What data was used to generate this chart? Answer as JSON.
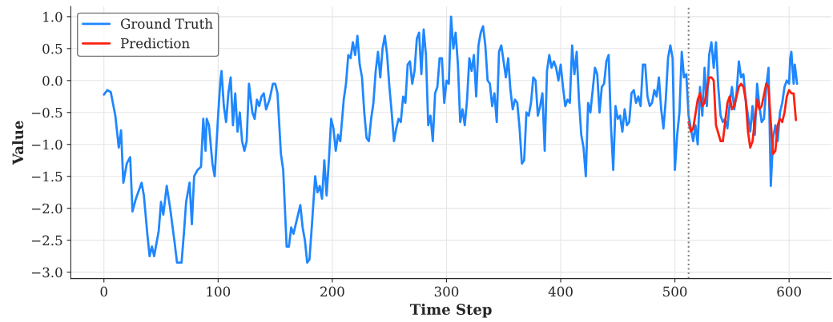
{
  "chart_data": {
    "type": "line",
    "xlabel": "Time Step",
    "ylabel": "Value",
    "xlim": [
      -29,
      637
    ],
    "ylim": [
      -3.1,
      1.16
    ],
    "xticks": [
      0,
      100,
      200,
      300,
      400,
      500,
      600
    ],
    "yticks": [
      {
        "value": -3,
        "label": "−3.0"
      },
      {
        "value": -2.5,
        "label": "−2.5"
      },
      {
        "value": -2,
        "label": "−2.0"
      },
      {
        "value": -1.5,
        "label": "−1.5"
      },
      {
        "value": -1,
        "label": "−1.0"
      },
      {
        "value": -0.5,
        "label": "−0.5"
      },
      {
        "value": 0,
        "label": "0.0"
      },
      {
        "value": 0.5,
        "label": "0.5"
      },
      {
        "value": 1,
        "label": "1.0"
      }
    ],
    "grid": true,
    "legend": "top left",
    "ref_lines": [
      {
        "axis": "x",
        "value": 512,
        "color": "#808080",
        "line_style": "dotted"
      }
    ],
    "series": [
      {
        "name": "Ground Truth",
        "color": "#1f87ff",
        "x": [
          0,
          3,
          6,
          10,
          13,
          15,
          17,
          20,
          23,
          25,
          28,
          30,
          33,
          35,
          38,
          40,
          42,
          44,
          48,
          50,
          52,
          55,
          58,
          62,
          64,
          68,
          70,
          72,
          75,
          77,
          79,
          82,
          85,
          87,
          89,
          90,
          92,
          95,
          97,
          100,
          102,
          103,
          105,
          107,
          109,
          111,
          113,
          115,
          117,
          119,
          121,
          123,
          125,
          127,
          130,
          132,
          134,
          136,
          138,
          140,
          142,
          145,
          148,
          150,
          152,
          155,
          157,
          160,
          162,
          164,
          166,
          170,
          172,
          174,
          176,
          178,
          180,
          182,
          185,
          187,
          189,
          191,
          193,
          195,
          197,
          199,
          201,
          203,
          205,
          207,
          210,
          212,
          214,
          216,
          218,
          220,
          222,
          224,
          226,
          228,
          230,
          232,
          234,
          236,
          238,
          240,
          242,
          244,
          246,
          248,
          250,
          252,
          254,
          256,
          258,
          260,
          262,
          264,
          266,
          268,
          270,
          272,
          274,
          276,
          278,
          280,
          282,
          284,
          286,
          288,
          290,
          292,
          294,
          296,
          298,
          300,
          302,
          304,
          306,
          308,
          310,
          312,
          314,
          316,
          318,
          320,
          322,
          324,
          326,
          328,
          330,
          332,
          334,
          336,
          338,
          340,
          342,
          344,
          346,
          348,
          350,
          352,
          354,
          356,
          358,
          360,
          362,
          364,
          366,
          368,
          370,
          372,
          374,
          376,
          378,
          380,
          382,
          384,
          386,
          388,
          390,
          392,
          394,
          396,
          398,
          400,
          402,
          404,
          406,
          408,
          410,
          412,
          414,
          416,
          418,
          420,
          422,
          424,
          426,
          428,
          430,
          432,
          434,
          436,
          438,
          440,
          442,
          444,
          446,
          448,
          450,
          452,
          454,
          456,
          458,
          460,
          462,
          464,
          466,
          468,
          470,
          472,
          474,
          476,
          478,
          480,
          482,
          484,
          486,
          488,
          490,
          492,
          494,
          496,
          498,
          500,
          502,
          504,
          506,
          508,
          510,
          512,
          514,
          516,
          518,
          520,
          522,
          524,
          526,
          528,
          530,
          532,
          534,
          536,
          538,
          540,
          542,
          544,
          546,
          548,
          550,
          552,
          554,
          556,
          558,
          560,
          562,
          564,
          566,
          568,
          570,
          572,
          574,
          576,
          578,
          580,
          582,
          584,
          586,
          588,
          590,
          592,
          594,
          596,
          598,
          600,
          601,
          602,
          604,
          605,
          607
        ],
        "values": [
          -0.22,
          -0.15,
          -0.18,
          -0.55,
          -1.05,
          -0.78,
          -1.6,
          -1.3,
          -1.2,
          -2.05,
          -1.85,
          -1.75,
          -1.6,
          -1.8,
          -2.4,
          -2.75,
          -2.6,
          -2.75,
          -2.35,
          -1.9,
          -2.1,
          -1.65,
          -2.0,
          -2.55,
          -2.85,
          -2.85,
          -2.4,
          -1.9,
          -1.6,
          -2.25,
          -1.5,
          -1.4,
          -1.35,
          -0.6,
          -1.1,
          -0.6,
          -0.7,
          -1.3,
          -1.5,
          -0.55,
          0.0,
          0.15,
          -0.4,
          -0.65,
          -0.2,
          0.05,
          -0.7,
          -0.2,
          -0.8,
          -0.5,
          -0.95,
          -1.1,
          -0.95,
          -0.05,
          -0.5,
          -0.6,
          -0.3,
          -0.4,
          -0.25,
          -0.2,
          -0.45,
          -0.3,
          -0.05,
          -0.05,
          -0.2,
          -1.15,
          -1.4,
          -2.6,
          -2.6,
          -2.3,
          -2.4,
          -2.1,
          -1.95,
          -2.3,
          -2.5,
          -2.85,
          -2.8,
          -2.3,
          -1.5,
          -1.75,
          -1.65,
          -1.85,
          -1.25,
          -1.8,
          -1.25,
          -0.6,
          -0.75,
          -1.1,
          -0.85,
          -0.95,
          -0.3,
          -0.05,
          0.4,
          0.35,
          0.6,
          0.4,
          0.7,
          0.25,
          0.05,
          -0.5,
          -0.9,
          -0.95,
          -0.6,
          -0.35,
          0.15,
          0.45,
          0.05,
          0.5,
          0.7,
          0.4,
          -0.1,
          -0.5,
          -0.95,
          -0.75,
          -0.6,
          -0.65,
          -0.25,
          -0.35,
          0.25,
          0.3,
          -0.05,
          0.15,
          0.65,
          0.75,
          0.1,
          0.8,
          0.4,
          -0.7,
          -0.55,
          -0.95,
          -0.2,
          -0.1,
          0.35,
          0.35,
          -0.35,
          0.0,
          -0.05,
          1.0,
          0.5,
          0.75,
          0.25,
          -0.65,
          -0.45,
          -0.7,
          -0.3,
          0.35,
          0.15,
          0.4,
          -0.25,
          0.55,
          0.75,
          0.85,
          0.55,
          0.0,
          -0.05,
          -0.4,
          -0.2,
          -0.65,
          0.45,
          0.55,
          0.3,
          0.05,
          0.35,
          -0.15,
          -0.45,
          -0.3,
          -0.35,
          -0.75,
          -1.3,
          -1.25,
          -0.5,
          -0.55,
          -0.35,
          0.05,
          0.0,
          -0.55,
          -0.4,
          -0.2,
          -1.1,
          0.15,
          0.4,
          0.2,
          0.3,
          0.2,
          0.0,
          0.25,
          -0.1,
          -0.4,
          -0.3,
          -0.35,
          0.55,
          0.1,
          0.45,
          -0.3,
          -0.85,
          -1.05,
          -1.5,
          -0.35,
          -0.5,
          -0.15,
          0.2,
          0.1,
          -0.5,
          -0.1,
          -0.05,
          0.3,
          0.4,
          -0.7,
          -1.4,
          -0.4,
          -0.6,
          -0.55,
          -0.8,
          -0.45,
          -0.7,
          -0.65,
          -0.2,
          -0.15,
          -0.35,
          -0.25,
          -0.4,
          0.25,
          0.25,
          -0.25,
          -0.4,
          -0.35,
          -0.15,
          -0.25,
          0.05,
          -0.45,
          -0.75,
          -0.3,
          0.35,
          0.55,
          0.35,
          -1.4,
          -0.85,
          -0.5,
          0.45,
          0.05,
          0.1,
          -0.55,
          -0.75,
          -0.95,
          -0.7,
          -1.0,
          -0.1,
          -0.55,
          0.2,
          -0.4,
          0.4,
          0.6,
          0.2,
          0.6,
          -0.1,
          -0.55,
          -0.65,
          -0.6,
          -0.75,
          -0.35,
          -0.1,
          -0.45,
          -0.2,
          0.3,
          0.05,
          0.1,
          -0.3,
          -0.55,
          -0.8,
          -0.4,
          -0.85,
          -0.05,
          -0.4,
          -0.65,
          -0.6,
          -0.1,
          0.2,
          -1.65,
          -0.9,
          -0.7,
          -0.95,
          -0.5,
          -0.35,
          -0.1,
          0.0,
          -0.05,
          0.35,
          0.45,
          -0.05,
          0.25,
          -0.05
        ]
      },
      {
        "name": "Prediction",
        "color": "#ff2010",
        "x": [
          512,
          514,
          516,
          520,
          522,
          524,
          526,
          530,
          532,
          534,
          536,
          540,
          542,
          546,
          548,
          550,
          552,
          556,
          558,
          560,
          562,
          564,
          566,
          568,
          572,
          574,
          576,
          580,
          582,
          584,
          586,
          588,
          590,
          592,
          594,
          596,
          598,
          600,
          602,
          604,
          606
        ],
        "values": [
          -0.65,
          -0.8,
          -0.75,
          -0.3,
          -0.2,
          -0.4,
          -0.35,
          0.05,
          0.05,
          0.0,
          -0.7,
          -0.95,
          -0.95,
          -0.35,
          -0.25,
          -0.45,
          -0.4,
          -0.1,
          -0.05,
          -0.1,
          -0.3,
          -0.8,
          -1.05,
          -0.95,
          -0.3,
          -0.45,
          -0.4,
          -0.05,
          -0.1,
          -0.65,
          -1.15,
          -1.1,
          -0.7,
          -0.6,
          -0.65,
          -0.5,
          -0.25,
          -0.15,
          -0.2,
          -0.2,
          -0.62
        ]
      }
    ]
  }
}
